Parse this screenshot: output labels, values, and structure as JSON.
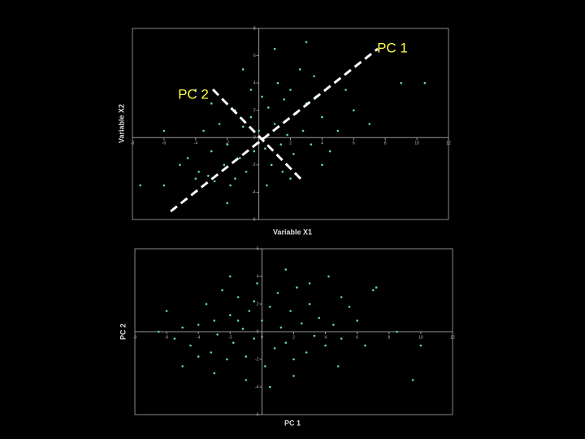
{
  "chart_data": [
    {
      "type": "scatter",
      "x_label": "Variable X1",
      "y_label": "Variable X2",
      "annotations": [
        "PC 1",
        "PC 2"
      ],
      "xlim": [
        -8,
        12
      ],
      "xticks": [
        -8,
        -6,
        -4,
        -2,
        0,
        2,
        4,
        6,
        8,
        10,
        12
      ],
      "ylim": [
        -6,
        8
      ],
      "yticks": [
        -6,
        -4,
        -2,
        0,
        2,
        4,
        6,
        8
      ],
      "series": [
        {
          "color": "#5fd3d3",
          "x": [
            -6,
            -5,
            -4.5,
            -4,
            -3.8,
            -3.5,
            -3.2,
            -3,
            -2.8,
            -2.5,
            -2.2,
            -2,
            -1.8,
            -1.5,
            -1.2,
            -1,
            -0.8,
            -0.5,
            -0.3,
            0,
            0.2,
            0.4,
            0.6,
            0.8,
            1,
            1.2,
            1.4,
            1.6,
            1.8,
            2,
            2.2,
            2.4,
            2.6,
            2.8,
            3,
            3.3,
            3.6,
            4,
            4.5,
            5,
            5.5,
            6,
            7,
            9,
            10.5,
            -7.5,
            -1,
            1,
            3,
            -4,
            0.5,
            -2,
            2,
            -6,
            -3,
            1.5,
            4,
            -0.5,
            3.5,
            -1.5
          ],
          "values": [
            -3.5,
            -2,
            -1.5,
            -3,
            -2.5,
            0.5,
            -2.8,
            -1,
            -3.2,
            1,
            -2,
            -0.5,
            -3.5,
            2,
            -1.5,
            0.8,
            -2.5,
            1.5,
            -1,
            0.5,
            3,
            -0.8,
            2.2,
            -2,
            1,
            4,
            -0.5,
            2.8,
            0.2,
            3.5,
            -1.2,
            1.8,
            5,
            0.5,
            2.5,
            -0.5,
            3,
            1.5,
            -1,
            0.5,
            3.5,
            2,
            1,
            4,
            4,
            -3.5,
            5,
            6.5,
            7,
            3.5,
            -3.5,
            -4.8,
            -3,
            0.5,
            2.5,
            -2.5,
            -2,
            3.5,
            4.5,
            -3
          ]
        }
      ]
    },
    {
      "type": "scatter",
      "x_label": "PC 1",
      "y_label": "PC 2",
      "xlim": [
        -8,
        12
      ],
      "xticks": [
        -8,
        -6,
        -4,
        -2,
        0,
        2,
        4,
        6,
        8,
        10,
        12
      ],
      "ylim": [
        -6,
        6
      ],
      "yticks": [
        -6,
        -4,
        -2,
        0,
        2,
        4,
        6
      ],
      "series": [
        {
          "color": "#5fd3d3",
          "x": [
            -6,
            -5.5,
            -5,
            -4.5,
            -4,
            -3.5,
            -3.2,
            -3,
            -2.8,
            -2.5,
            -2.2,
            -2,
            -1.8,
            -1.5,
            -1.2,
            -1,
            -0.8,
            -0.5,
            -0.3,
            0,
            0.2,
            0.5,
            0.8,
            1,
            1.2,
            1.5,
            1.8,
            2,
            2.2,
            2.5,
            2.8,
            3,
            3.3,
            3.6,
            4,
            4.2,
            4.5,
            5,
            5.5,
            6,
            6.5,
            7,
            7.2,
            9.5,
            10,
            -5,
            -3,
            -1,
            0.5,
            1.5,
            -2,
            3,
            4.8,
            -4,
            2,
            -0.5,
            -6.5,
            8.5,
            -1.5,
            5
          ],
          "values": [
            1.5,
            -0.5,
            0.3,
            -1,
            0.5,
            2,
            -1.5,
            0.8,
            -0.2,
            3,
            -2,
            1.2,
            -0.8,
            2.5,
            0.2,
            -1.8,
            1.5,
            -0.5,
            3.5,
            0.8,
            -2.5,
            1.8,
            -1.2,
            2.8,
            0.3,
            -0.8,
            1.5,
            -2,
            3.2,
            0.6,
            -1.5,
            2,
            -0.3,
            1,
            -1,
            4,
            0.5,
            -0.5,
            1.8,
            0.8,
            -1,
            3,
            3.2,
            -3.5,
            -1,
            -2.5,
            -3,
            -3.5,
            -4,
            4.5,
            4,
            3.5,
            -2.5,
            -1.8,
            -3.2,
            2.2,
            0,
            0,
            0.8,
            2.5
          ]
        }
      ]
    }
  ]
}
